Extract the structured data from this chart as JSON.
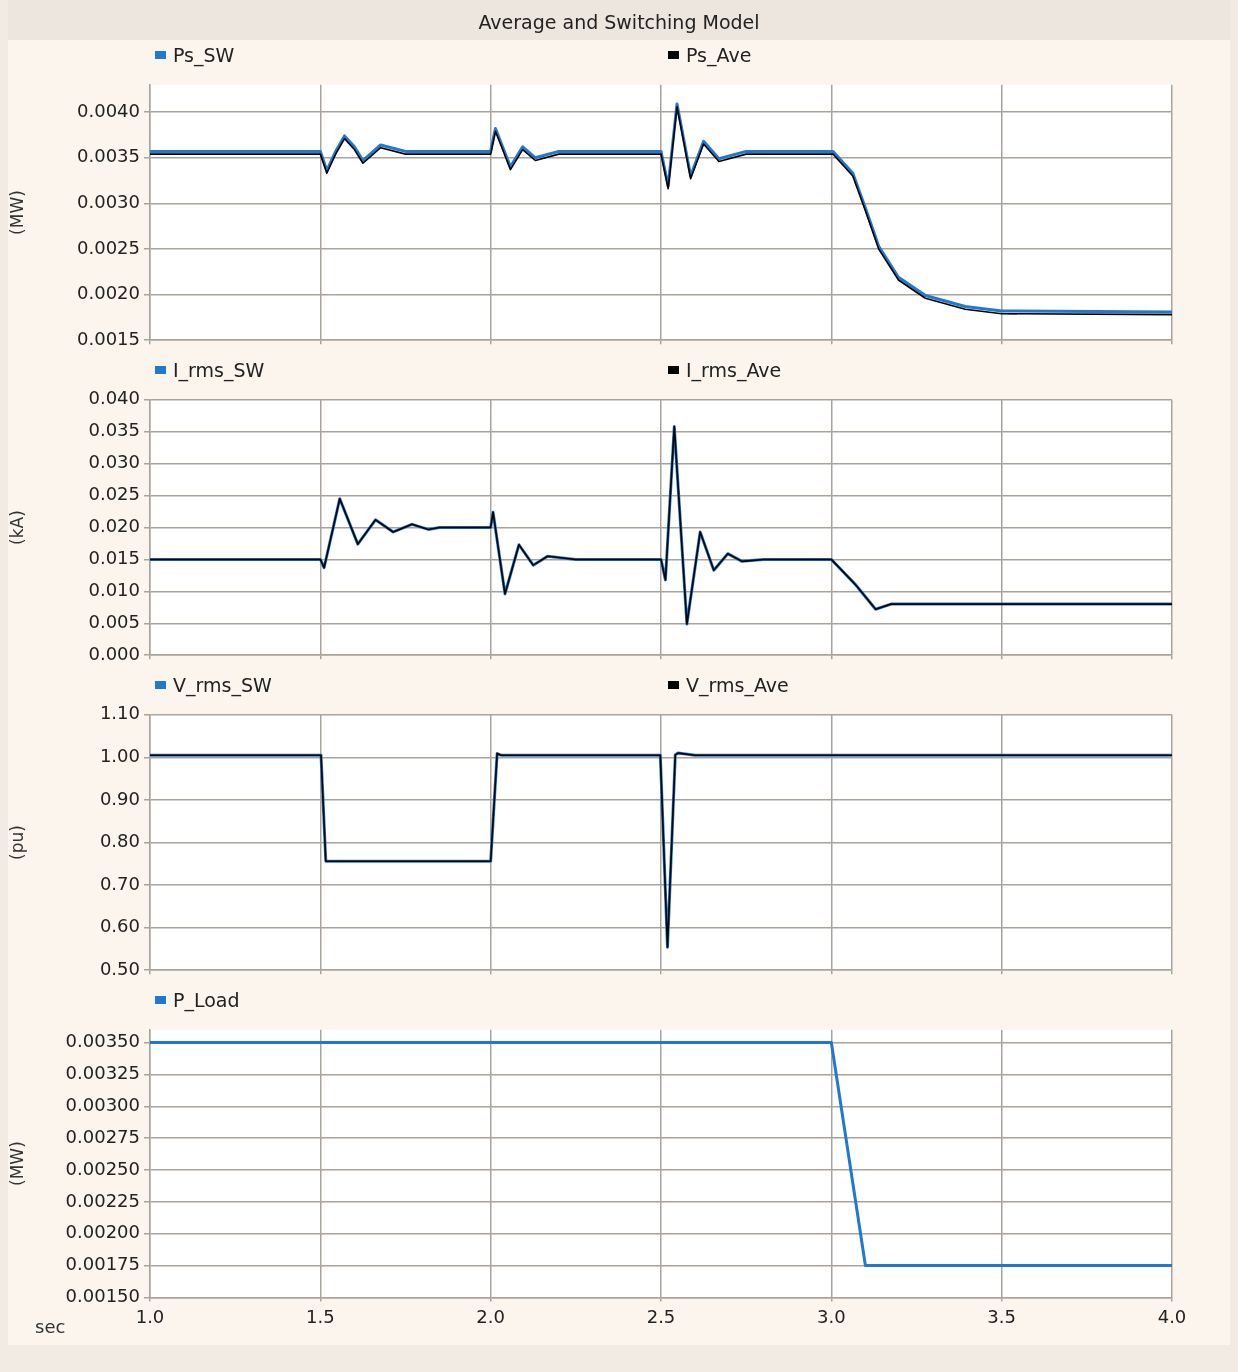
{
  "chart_data": [
    {
      "type": "line",
      "title": "Average and Switching Model",
      "ylabel": "(MW)",
      "legend": "top",
      "grid": true,
      "tick_labels": "y",
      "marker": "none",
      "line_style": "solid",
      "xlim": [
        1.0,
        4.0
      ],
      "xticks": [
        1.0,
        1.5,
        2.0,
        2.5,
        3.0,
        3.5,
        4.0
      ],
      "ylim": [
        0.0015,
        0.0043
      ],
      "yticks": [
        {
          "value": 0.0015,
          "label": "0.0015"
        },
        {
          "value": 0.002,
          "label": "0.0020"
        },
        {
          "value": 0.0025,
          "label": "0.0025"
        },
        {
          "value": 0.003,
          "label": "0.0030"
        },
        {
          "value": 0.0035,
          "label": "0.0035"
        },
        {
          "value": 0.004,
          "label": "0.0040"
        }
      ],
      "series": [
        {
          "name": "Ps_SW",
          "color": "#1f78d1",
          "x": [
            1.0,
            1.5,
            1.519,
            1.545,
            1.571,
            1.6,
            1.625,
            1.677,
            1.75,
            2.0,
            2.014,
            2.035,
            2.058,
            2.094,
            2.131,
            2.2,
            2.5,
            2.521,
            2.547,
            2.587,
            2.625,
            2.67,
            2.75,
            3.0,
            3.005,
            3.063,
            3.1,
            3.139,
            3.197,
            3.276,
            3.393,
            3.5,
            4.0
          ],
          "values": [
            0.00357,
            0.00357,
            0.00336,
            0.00357,
            0.00374,
            0.00362,
            0.00347,
            0.00364,
            0.00357,
            0.00357,
            0.00382,
            0.00362,
            0.0034,
            0.00362,
            0.0035,
            0.00357,
            0.00357,
            0.00319,
            0.00409,
            0.0033,
            0.00368,
            0.00349,
            0.00357,
            0.00357,
            0.00357,
            0.00333,
            0.00295,
            0.00253,
            0.00219,
            0.00199,
            0.00187,
            0.00182,
            0.00181
          ]
        },
        {
          "name": "Ps_Ave",
          "color": "#000000",
          "x": [
            1.0,
            1.5,
            1.519,
            1.545,
            1.571,
            1.6,
            1.625,
            1.677,
            1.75,
            2.0,
            2.014,
            2.035,
            2.058,
            2.094,
            2.131,
            2.2,
            2.5,
            2.521,
            2.547,
            2.587,
            2.625,
            2.67,
            2.75,
            3.0,
            3.005,
            3.063,
            3.1,
            3.139,
            3.197,
            3.276,
            3.393,
            3.5,
            4.0
          ],
          "values": [
            0.00354,
            0.00354,
            0.00333,
            0.00354,
            0.00371,
            0.00359,
            0.00344,
            0.00361,
            0.00354,
            0.00354,
            0.00379,
            0.00359,
            0.00337,
            0.00359,
            0.00347,
            0.00354,
            0.00354,
            0.00316,
            0.00406,
            0.00327,
            0.00365,
            0.00346,
            0.00354,
            0.00354,
            0.00354,
            0.0033,
            0.00292,
            0.0025,
            0.00216,
            0.00196,
            0.00184,
            0.00179,
            0.00178
          ]
        }
      ]
    },
    {
      "type": "line",
      "ylabel": "(kA)",
      "legend": "top",
      "grid": true,
      "tick_labels": "y",
      "marker": "none",
      "line_style": "solid",
      "xlim": [
        1.0,
        4.0
      ],
      "xticks": [
        1.0,
        1.5,
        2.0,
        2.5,
        3.0,
        3.5,
        4.0
      ],
      "ylim": [
        0,
        0.04
      ],
      "yticks": [
        {
          "value": 0,
          "label": "0.000"
        },
        {
          "value": 0.005,
          "label": "0.005"
        },
        {
          "value": 0.01,
          "label": "0.010"
        },
        {
          "value": 0.015,
          "label": "0.015"
        },
        {
          "value": 0.02,
          "label": "0.020"
        },
        {
          "value": 0.025,
          "label": "0.025"
        },
        {
          "value": 0.03,
          "label": "0.030"
        },
        {
          "value": 0.035,
          "label": "0.035"
        },
        {
          "value": 0.04,
          "label": "0.040"
        }
      ],
      "series": [
        {
          "name": "I_rms_SW",
          "color": "#1f78d1",
          "x": [
            1.0,
            1.5,
            1.511,
            1.557,
            1.61,
            1.662,
            1.714,
            1.769,
            1.817,
            1.85,
            2.0,
            2.007,
            2.042,
            2.083,
            2.125,
            2.167,
            2.25,
            2.5,
            2.513,
            2.539,
            2.576,
            2.615,
            2.655,
            2.696,
            2.738,
            2.8,
            3.0,
            3.07,
            3.13,
            3.175,
            4.0
          ],
          "values": [
            0.015,
            0.015,
            0.0137,
            0.0245,
            0.0174,
            0.0212,
            0.0193,
            0.0205,
            0.0197,
            0.02,
            0.02,
            0.0224,
            0.0096,
            0.0173,
            0.0141,
            0.0155,
            0.015,
            0.015,
            0.0118,
            0.0358,
            0.0049,
            0.0193,
            0.0133,
            0.0159,
            0.0147,
            0.015,
            0.015,
            0.0111,
            0.0072,
            0.008,
            0.008
          ]
        },
        {
          "name": "I_rms_Ave",
          "color": "#000000",
          "x": [
            1.0,
            1.5,
            1.511,
            1.557,
            1.61,
            1.662,
            1.714,
            1.769,
            1.817,
            1.85,
            2.0,
            2.007,
            2.042,
            2.083,
            2.125,
            2.167,
            2.25,
            2.5,
            2.513,
            2.539,
            2.576,
            2.615,
            2.655,
            2.696,
            2.738,
            2.8,
            3.0,
            3.07,
            3.13,
            3.175,
            4.0
          ],
          "values": [
            0.015,
            0.015,
            0.0137,
            0.0245,
            0.0174,
            0.0212,
            0.0193,
            0.0205,
            0.0197,
            0.02,
            0.02,
            0.0224,
            0.0096,
            0.0173,
            0.0141,
            0.0155,
            0.015,
            0.015,
            0.0118,
            0.0358,
            0.0049,
            0.0193,
            0.0133,
            0.0159,
            0.0147,
            0.015,
            0.015,
            0.0111,
            0.0072,
            0.008,
            0.008
          ]
        }
      ]
    },
    {
      "type": "line",
      "ylabel": "(pu)",
      "legend": "top",
      "grid": true,
      "tick_labels": "y",
      "marker": "none",
      "line_style": "solid",
      "xlim": [
        1.0,
        4.0
      ],
      "xticks": [
        1.0,
        1.5,
        2.0,
        2.5,
        3.0,
        3.5,
        4.0
      ],
      "ylim": [
        0.5,
        1.1
      ],
      "yticks": [
        {
          "value": 0.5,
          "label": "0.50"
        },
        {
          "value": 0.6,
          "label": "0.60"
        },
        {
          "value": 0.7,
          "label": "0.70"
        },
        {
          "value": 0.8,
          "label": "0.80"
        },
        {
          "value": 0.9,
          "label": "0.90"
        },
        {
          "value": 1.0,
          "label": "1.00"
        },
        {
          "value": 1.1,
          "label": "1.10"
        }
      ],
      "series": [
        {
          "name": "V_rms_SW",
          "color": "#1f78d1",
          "x": [
            1.0,
            1.502,
            1.516,
            2.0,
            2.019,
            2.03,
            2.498,
            2.519,
            2.542,
            2.55,
            2.6,
            4.0
          ],
          "values": [
            1.005,
            1.005,
            0.756,
            0.756,
            1.009,
            1.005,
            1.005,
            0.554,
            1.006,
            1.01,
            1.005,
            1.005
          ]
        },
        {
          "name": "V_rms_Ave",
          "color": "#000000",
          "x": [
            1.0,
            1.502,
            1.516,
            2.0,
            2.019,
            2.03,
            2.498,
            2.519,
            2.542,
            2.55,
            2.6,
            4.0
          ],
          "values": [
            1.005,
            1.005,
            0.756,
            0.756,
            1.009,
            1.005,
            1.005,
            0.554,
            1.006,
            1.01,
            1.005,
            1.005
          ]
        }
      ]
    },
    {
      "type": "line",
      "ylabel": "(MW)",
      "xlabel": "sec",
      "legend": "top",
      "grid": true,
      "marker": "none",
      "line_style": "solid",
      "xlim": [
        1.0,
        4.0
      ],
      "xticks": [
        {
          "value": 1.0,
          "label": "1.0"
        },
        {
          "value": 1.5,
          "label": "1.5"
        },
        {
          "value": 2.0,
          "label": "2.0"
        },
        {
          "value": 2.5,
          "label": "2.5"
        },
        {
          "value": 3.0,
          "label": "3.0"
        },
        {
          "value": 3.5,
          "label": "3.5"
        },
        {
          "value": 4.0,
          "label": "4.0"
        }
      ],
      "ylim": [
        0.0015,
        0.0036
      ],
      "yticks": [
        {
          "value": 0.0015,
          "label": "0.00150"
        },
        {
          "value": 0.00175,
          "label": "0.00175"
        },
        {
          "value": 0.002,
          "label": "0.00200"
        },
        {
          "value": 0.00225,
          "label": "0.00225"
        },
        {
          "value": 0.0025,
          "label": "0.00250"
        },
        {
          "value": 0.00275,
          "label": "0.00275"
        },
        {
          "value": 0.003,
          "label": "0.00300"
        },
        {
          "value": 0.00325,
          "label": "0.00325"
        },
        {
          "value": 0.0035,
          "label": "0.00350"
        }
      ],
      "series": [
        {
          "name": "P_Load",
          "color": "#1f78d1",
          "x": [
            1.0,
            3.0,
            3.1,
            4.0
          ],
          "values": [
            0.0035,
            0.0035,
            0.00175,
            0.00175
          ]
        }
      ]
    }
  ]
}
